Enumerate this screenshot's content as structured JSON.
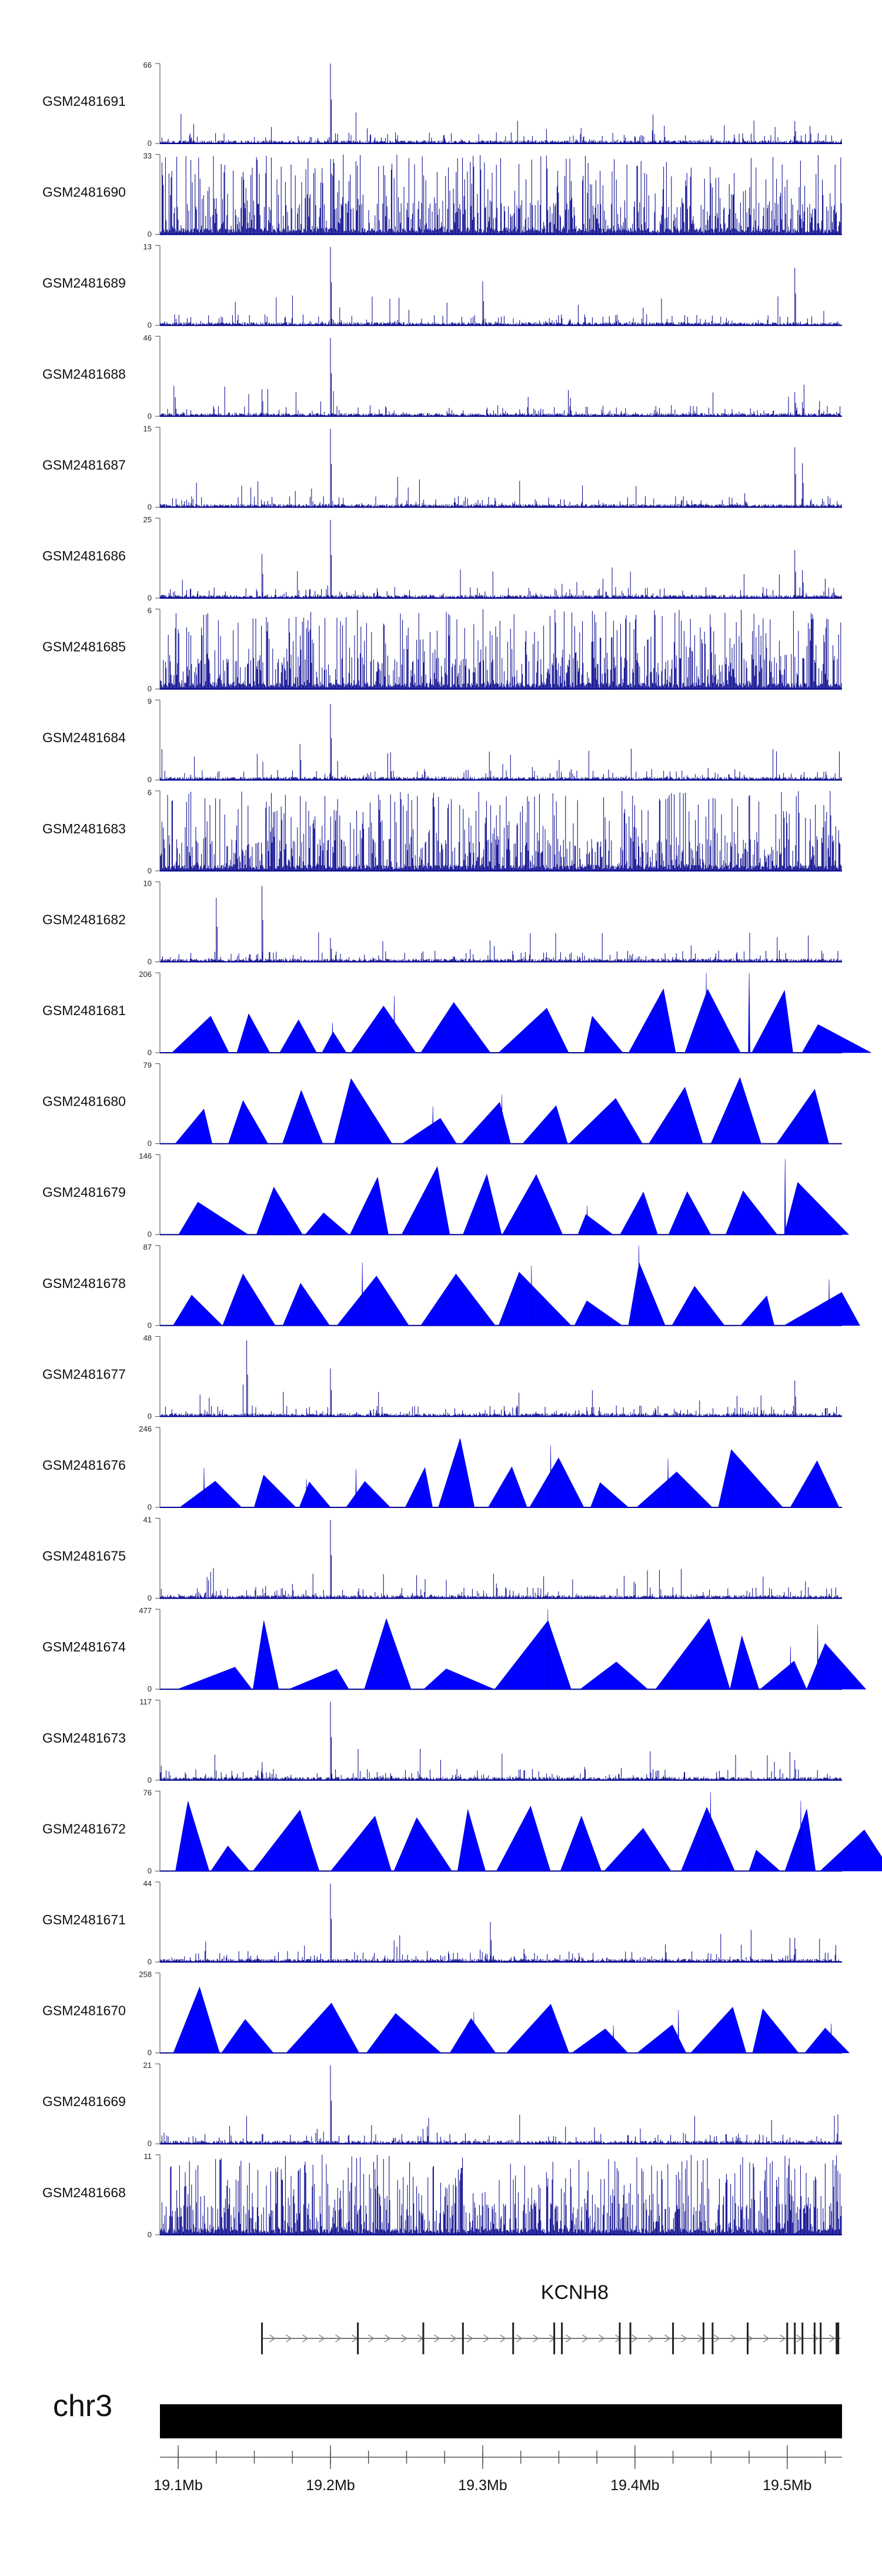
{
  "chart_data": {
    "type": "area",
    "tracks": [
      {
        "name": "GSM2481691",
        "ymax": "66",
        "ymin": "0",
        "style": "bars",
        "peaks": [
          [
            19.2,
            1.0
          ],
          [
            19.505,
            0.28
          ],
          [
            19.515,
            0.22
          ],
          [
            19.45,
            0.1
          ]
        ]
      },
      {
        "name": "GSM2481690",
        "ymax": "33",
        "ymin": "0",
        "style": "bars",
        "peaks": []
      },
      {
        "name": "GSM2481689",
        "ymax": "13",
        "ymin": "0",
        "style": "bars",
        "peaks": [
          [
            19.2,
            0.98
          ],
          [
            19.505,
            0.72
          ],
          [
            19.3,
            0.55
          ]
        ]
      },
      {
        "name": "GSM2481688",
        "ymax": "46",
        "ymin": "0",
        "style": "bars",
        "peaks": [
          [
            19.2,
            0.98
          ],
          [
            19.155,
            0.34
          ],
          [
            19.505,
            0.3
          ],
          [
            19.51,
            0.18
          ]
        ]
      },
      {
        "name": "GSM2481687",
        "ymax": "15",
        "ymin": "0",
        "style": "bars",
        "peaks": [
          [
            19.2,
            0.98
          ],
          [
            19.505,
            0.75
          ],
          [
            19.51,
            0.55
          ]
        ]
      },
      {
        "name": "GSM2481686",
        "ymax": "25",
        "ymin": "0",
        "style": "bars",
        "peaks": [
          [
            19.2,
            0.98
          ],
          [
            19.155,
            0.55
          ],
          [
            19.505,
            0.6
          ],
          [
            19.51,
            0.35
          ]
        ]
      },
      {
        "name": "GSM2481685",
        "ymax": "6",
        "ymin": "0",
        "style": "bars",
        "peaks": []
      },
      {
        "name": "GSM2481684",
        "ymax": "9",
        "ymin": "0",
        "style": "bars",
        "peaks": [
          [
            19.2,
            0.95
          ],
          [
            19.18,
            0.45
          ]
        ]
      },
      {
        "name": "GSM2481683",
        "ymax": "6",
        "ymin": "0",
        "style": "bars",
        "peaks": []
      },
      {
        "name": "GSM2481682",
        "ymax": "10",
        "ymin": "0",
        "style": "bars",
        "peaks": [
          [
            19.125,
            0.8
          ],
          [
            19.155,
            0.95
          ],
          [
            19.2,
            0.3
          ]
        ]
      },
      {
        "name": "GSM2481681",
        "ymax": "206",
        "ymin": "0",
        "style": "triangles",
        "peaks": [
          [
            19.475,
            1.0
          ]
        ]
      },
      {
        "name": "GSM2481680",
        "ymax": "79",
        "ymin": "0",
        "style": "triangles",
        "peaks": []
      },
      {
        "name": "GSM2481679",
        "ymax": "146",
        "ymin": "0",
        "style": "triangles",
        "peaks": []
      },
      {
        "name": "GSM2481678",
        "ymax": "87",
        "ymin": "0",
        "style": "triangles",
        "peaks": []
      },
      {
        "name": "GSM2481677",
        "ymax": "48",
        "ymin": "0",
        "style": "bars",
        "peaks": [
          [
            19.145,
            0.95
          ],
          [
            19.2,
            0.6
          ],
          [
            19.505,
            0.45
          ]
        ]
      },
      {
        "name": "GSM2481676",
        "ymax": "246",
        "ymin": "0",
        "style": "triangles",
        "peaks": []
      },
      {
        "name": "GSM2481675",
        "ymax": "41",
        "ymin": "0",
        "style": "bars",
        "peaks": [
          [
            19.2,
            0.98
          ],
          [
            19.175,
            0.18
          ]
        ]
      },
      {
        "name": "GSM2481674",
        "ymax": "477",
        "ymin": "0",
        "style": "triangles",
        "peaks": []
      },
      {
        "name": "GSM2481673",
        "ymax": "117",
        "ymin": "0",
        "style": "bars",
        "peaks": [
          [
            19.2,
            0.98
          ],
          [
            19.505,
            0.25
          ],
          [
            19.155,
            0.15
          ]
        ]
      },
      {
        "name": "GSM2481672",
        "ymax": "76",
        "ymin": "0",
        "style": "triangles",
        "peaks": []
      },
      {
        "name": "GSM2481671",
        "ymax": "44",
        "ymin": "0",
        "style": "bars",
        "peaks": [
          [
            19.2,
            0.98
          ],
          [
            19.305,
            0.5
          ],
          [
            19.505,
            0.3
          ],
          [
            19.42,
            0.22
          ]
        ]
      },
      {
        "name": "GSM2481670",
        "ymax": "258",
        "ymin": "0",
        "style": "triangles",
        "peaks": []
      },
      {
        "name": "GSM2481669",
        "ymax": "21",
        "ymin": "0",
        "style": "bars",
        "peaks": [
          [
            19.2,
            0.98
          ]
        ]
      },
      {
        "name": "GSM2481668",
        "ymax": "11",
        "ymin": "0",
        "style": "bars",
        "peaks": []
      }
    ],
    "gene": {
      "name": "KCNH8",
      "start": 19.155,
      "end": 19.535,
      "exons": [
        19.155,
        19.218,
        19.261,
        19.287,
        19.32,
        19.347,
        19.352,
        19.39,
        19.397,
        19.425,
        19.445,
        19.451,
        19.474,
        19.5,
        19.505,
        19.51,
        19.518,
        19.522,
        19.533
      ]
    },
    "chromosome": "chr3",
    "x_range": [
      19.088,
      19.536
    ],
    "x_ticks": [
      19.1,
      19.2,
      19.3,
      19.4,
      19.5
    ],
    "x_tick_labels": [
      "19.1Mb",
      "19.2Mb",
      "19.3Mb",
      "19.4Mb",
      "19.5Mb"
    ],
    "x_minor_ticks": [
      19.1,
      19.125,
      19.15,
      19.175,
      19.2,
      19.225,
      19.25,
      19.275,
      19.3,
      19.325,
      19.35,
      19.375,
      19.4,
      19.425,
      19.45,
      19.475,
      19.5,
      19.525
    ]
  }
}
